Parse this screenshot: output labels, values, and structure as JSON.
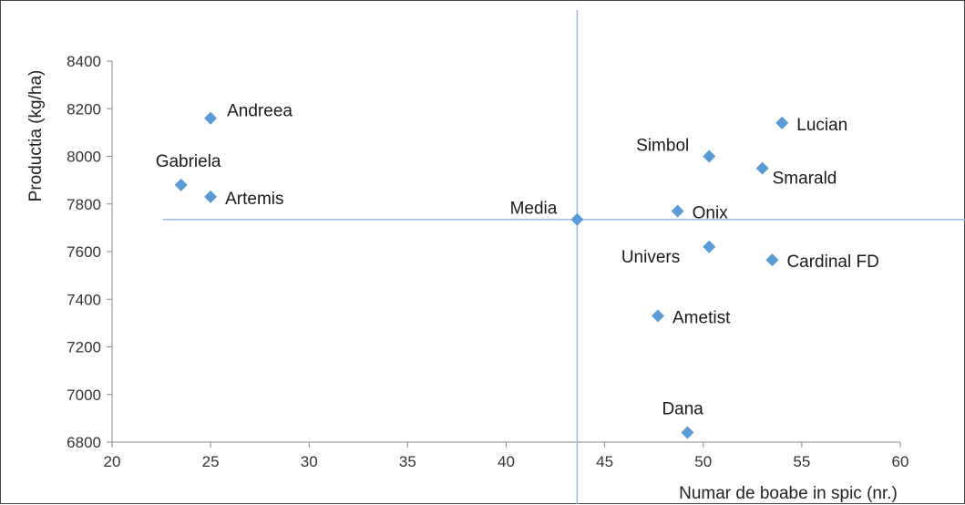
{
  "chart_data": {
    "type": "scatter",
    "xlabel": "Numar de boabe in spic (nr.)",
    "ylabel": "Productia (kg/ha)",
    "xlim": [
      20,
      60
    ],
    "ylim": [
      6800,
      8400
    ],
    "x_ticks": [
      20,
      25,
      30,
      35,
      40,
      45,
      50,
      55,
      60
    ],
    "y_ticks": [
      6800,
      7000,
      7200,
      7400,
      7600,
      7800,
      8000,
      8200,
      8400
    ],
    "grid": false,
    "legend": "none",
    "marker_color": "#5b9bd5",
    "reference_line_color": "#9dbbe0",
    "reference_lines": {
      "x": 43.6,
      "y": 7735
    },
    "points": [
      {
        "label": "Andreea",
        "x": 25.0,
        "y": 8160,
        "label_pos": "upper-right"
      },
      {
        "label": "Gabriela",
        "x": 23.5,
        "y": 7880,
        "label_pos": "above"
      },
      {
        "label": "Artemis",
        "x": 25.0,
        "y": 7830,
        "label_pos": "right"
      },
      {
        "label": "Media",
        "x": 43.6,
        "y": 7735,
        "label_pos": "upper-left"
      },
      {
        "label": "Lucian",
        "x": 54.0,
        "y": 8140,
        "label_pos": "right"
      },
      {
        "label": "Simbol",
        "x": 50.3,
        "y": 8000,
        "label_pos": "upper-left"
      },
      {
        "label": "Smarald",
        "x": 53.0,
        "y": 7950,
        "label_pos": "lower-right"
      },
      {
        "label": "Onix",
        "x": 48.7,
        "y": 7770,
        "label_pos": "right"
      },
      {
        "label": "Univers",
        "x": 50.3,
        "y": 7620,
        "label_pos": "lower-left"
      },
      {
        "label": "Cardinal FD",
        "x": 53.5,
        "y": 7565,
        "label_pos": "right"
      },
      {
        "label": "Ametist",
        "x": 47.7,
        "y": 7330,
        "label_pos": "right"
      },
      {
        "label": "Dana",
        "x": 49.2,
        "y": 6840,
        "label_pos": "above"
      }
    ]
  }
}
